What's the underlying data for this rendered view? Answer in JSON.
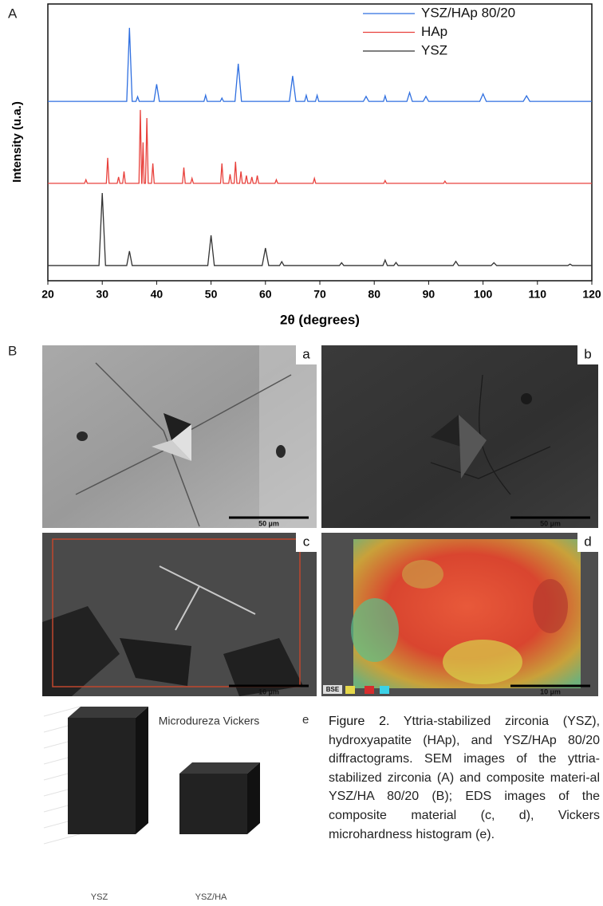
{
  "panel_a": {
    "label": "A"
  },
  "chart_data": {
    "type": "line",
    "xlabel": "2θ (degrees)",
    "ylabel": "Intensity (u.a.)",
    "xlim": [
      20,
      120
    ],
    "xticks": [
      20,
      30,
      40,
      50,
      60,
      70,
      80,
      90,
      100,
      110,
      120
    ],
    "ylim": [
      0,
      100
    ],
    "legend": "upper right",
    "series": [
      {
        "name": "YSZ/HAp 80/20",
        "color": "#2f6fe0",
        "x": [
          20,
          34.5,
          35,
          35.5,
          36.2,
          36.5,
          36.8,
          39.5,
          40,
          40.5,
          48.7,
          49,
          49.3,
          51.7,
          52,
          52.3,
          54.4,
          55,
          55.6,
          64.4,
          65,
          65.6,
          67.2,
          67.5,
          67.8,
          69.2,
          69.5,
          69.8,
          78,
          78.5,
          79,
          81.7,
          82,
          82.3,
          86,
          86.5,
          87,
          89,
          89.5,
          90,
          99.4,
          100,
          100.6,
          107.4,
          108,
          108.6,
          120
        ],
        "values": [
          64.8,
          64.8,
          91.4,
          64.8,
          64.8,
          66.5,
          64.8,
          64.8,
          71,
          64.8,
          64.8,
          67,
          64.8,
          64.8,
          66,
          64.8,
          64.8,
          78.4,
          64.8,
          64.8,
          74,
          64.8,
          64.8,
          67,
          64.8,
          64.8,
          67,
          64.8,
          64.8,
          66.6,
          64.8,
          64.8,
          66.8,
          64.8,
          64.8,
          68,
          64.8,
          64.8,
          66.6,
          64.8,
          64.8,
          67.5,
          64.8,
          64.8,
          66.8,
          64.8,
          64.8
        ]
      },
      {
        "name": "HAp",
        "color": "#e8413c",
        "x": [
          20,
          26.75,
          27,
          27.25,
          30.75,
          31,
          31.25,
          32.75,
          33,
          33.25,
          33.75,
          34,
          34.25,
          36.75,
          37,
          37.25,
          37.3,
          37.5,
          37.7,
          37.95,
          38.2,
          38.45,
          39.05,
          39.3,
          39.55,
          44.75,
          45,
          45.25,
          46.25,
          46.5,
          46.75,
          51.75,
          52,
          52.25,
          53.25,
          53.5,
          53.75,
          54.25,
          54.5,
          54.75,
          55.25,
          55.5,
          55.75,
          56.25,
          56.5,
          56.75,
          57.25,
          57.5,
          57.75,
          58.25,
          58.5,
          58.75,
          61.75,
          62,
          62.25,
          68.75,
          69,
          69.25,
          81.75,
          82,
          82.25,
          92.75,
          93,
          93.25,
          120
        ],
        "values": [
          35.2,
          35.2,
          36.5,
          35.2,
          35.2,
          44.4,
          35.2,
          35.2,
          37.5,
          35.2,
          35.2,
          39.5,
          35.2,
          35.2,
          61.7,
          35.2,
          35.2,
          50,
          35.2,
          35.2,
          58.8,
          35.2,
          35.2,
          42.4,
          35.2,
          35.2,
          40.9,
          35.2,
          35.2,
          37,
          35.2,
          35.2,
          42.4,
          35.2,
          35.2,
          38.5,
          35.2,
          35.2,
          43,
          35.2,
          35.2,
          39.5,
          35.2,
          35.2,
          38,
          35.2,
          35.2,
          37.5,
          35.2,
          35.2,
          38,
          35.2,
          35.2,
          36.5,
          35.2,
          35.2,
          37,
          35.2,
          35.2,
          36.2,
          35.2,
          35.2,
          36,
          35.2,
          35.2
        ]
      },
      {
        "name": "YSZ",
        "color": "#333333",
        "x": [
          20,
          29.4,
          30,
          30.6,
          34.5,
          35,
          35.5,
          49.4,
          50,
          50.6,
          59.4,
          60,
          60.6,
          62.6,
          63,
          63.4,
          73.6,
          74,
          74.4,
          81.6,
          82,
          82.4,
          83.6,
          84,
          84.4,
          94.5,
          95,
          95.5,
          101.5,
          102,
          102.5,
          115.6,
          116,
          116.4,
          120
        ],
        "values": [
          5.5,
          5.5,
          31.7,
          5.5,
          5.5,
          10.7,
          5.5,
          5.5,
          16.4,
          5.5,
          5.5,
          11.8,
          5.5,
          5.5,
          6.9,
          5.5,
          5.5,
          6.5,
          5.5,
          5.5,
          7.5,
          5.5,
          5.5,
          6.6,
          5.5,
          5.5,
          7,
          5.5,
          5.5,
          6.5,
          5.5,
          5.5,
          6,
          5.5,
          5.5
        ]
      }
    ]
  },
  "panel_b": {
    "label": "B",
    "images": [
      {
        "label": "a",
        "scale_bar": "50 µm"
      },
      {
        "label": "b",
        "scale_bar": "50 µm"
      },
      {
        "label": "c",
        "scale_bar": "10 µm"
      },
      {
        "label": "d",
        "scale_bar": "10 µm",
        "legend": "BSE"
      }
    ]
  },
  "bar_chart": {
    "type": "bar",
    "title": "Microdureza Vickers",
    "label": "e",
    "categories": [
      "YSZ",
      "YSZ/HA"
    ],
    "values": [
      7.3,
      3.8
    ],
    "color": "#222222",
    "ylim": [
      0,
      8
    ],
    "yticks": [
      0,
      1,
      2,
      3,
      4,
      5,
      6,
      7,
      8
    ],
    "grid": true
  },
  "caption": {
    "label": "Figure 2.",
    "text": "Yttria-stabilized zirconia (YSZ), hydroxyapatite (HAp), and YSZ/HAp 80/20 diffractograms. SEM images of the yttria-stabilized zirconia (A) and composite materi-al YSZ/HA 80/20 (B); EDS images of the composite material (c, d), Vickers microhardness histogram (e)."
  }
}
